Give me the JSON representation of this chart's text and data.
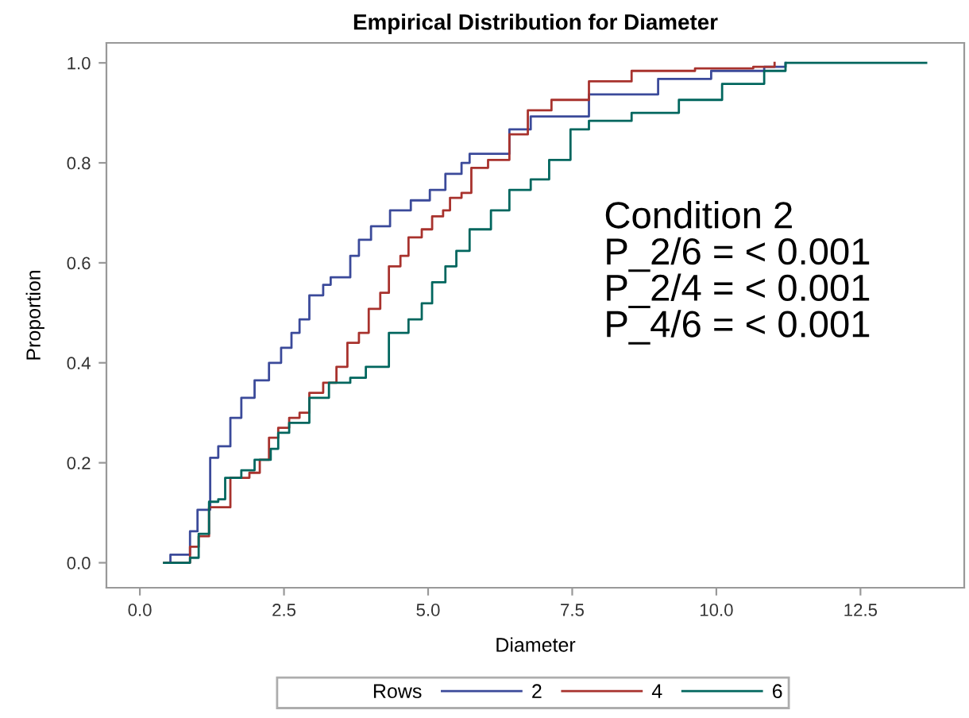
{
  "chart_data": {
    "type": "step",
    "title": "Empirical Distribution for Diameter",
    "xlabel": "Diameter",
    "ylabel": "Proportion",
    "legend_title": "Rows",
    "legend": "bottom",
    "grid": false,
    "xlim": [
      -0.58,
      14.3
    ],
    "ylim": [
      -0.05,
      1.04
    ],
    "xticks": [
      {
        "value": 0,
        "label": "0.0"
      },
      2.5,
      {
        "value": 5,
        "label": "5.0"
      },
      7.5,
      {
        "value": 10,
        "label": "10.0"
      },
      12.5
    ],
    "yticks": [
      {
        "value": 0,
        "label": "0.0"
      },
      0.2,
      0.4,
      0.6,
      0.8,
      {
        "value": 1,
        "label": "1.0"
      }
    ],
    "annotations": [
      "Condition 2\nP_2/6 = < 0.001\nP_2/4 = < 0.001\nP_4/6 = < 0.001"
    ],
    "series": [
      {
        "name": "2",
        "color": "#3b4a9a",
        "x": [
          0.47,
          0.53,
          0.87,
          1.0,
          1.22,
          1.36,
          1.57,
          1.76,
          1.99,
          2.24,
          2.45,
          2.63,
          2.77,
          2.94,
          3.18,
          3.31,
          3.65,
          3.8,
          4.01,
          4.34,
          4.7,
          5.03,
          5.3,
          5.58,
          5.72,
          6.41,
          6.78,
          7.79,
          8.99,
          9.91,
          10.83,
          11.2
        ],
        "values": [
          0,
          0.016,
          0.063,
          0.106,
          0.21,
          0.233,
          0.29,
          0.33,
          0.365,
          0.4,
          0.43,
          0.46,
          0.487,
          0.535,
          0.556,
          0.571,
          0.614,
          0.646,
          0.673,
          0.705,
          0.725,
          0.746,
          0.778,
          0.8,
          0.818,
          0.867,
          0.893,
          0.937,
          0.968,
          0.984,
          0.992,
          1.0
        ]
      },
      {
        "name": "4",
        "color": "#a8322d",
        "x": [
          0.42,
          0.87,
          1.02,
          1.2,
          1.57,
          1.9,
          2.08,
          2.24,
          2.4,
          2.59,
          2.77,
          2.94,
          3.18,
          3.41,
          3.6,
          3.8,
          3.97,
          4.17,
          4.32,
          4.52,
          4.66,
          4.89,
          5.07,
          5.26,
          5.38,
          5.58,
          5.75,
          6.04,
          6.41,
          6.73,
          7.14,
          7.79,
          8.53,
          9.63,
          10.64,
          11.01
        ],
        "values": [
          0,
          0.032,
          0.053,
          0.111,
          0.17,
          0.18,
          0.206,
          0.25,
          0.27,
          0.29,
          0.3,
          0.34,
          0.36,
          0.392,
          0.44,
          0.46,
          0.508,
          0.54,
          0.593,
          0.614,
          0.651,
          0.667,
          0.693,
          0.705,
          0.73,
          0.74,
          0.79,
          0.806,
          0.857,
          0.905,
          0.926,
          0.963,
          0.984,
          0.989,
          0.992,
          1.0
        ]
      },
      {
        "name": "6",
        "color": "#01665e",
        "x": [
          0.42,
          0.87,
          1.02,
          1.2,
          1.36,
          1.48,
          1.76,
          1.99,
          2.27,
          2.4,
          2.59,
          2.94,
          3.28,
          3.65,
          3.92,
          4.32,
          4.66,
          4.89,
          5.07,
          5.3,
          5.49,
          5.72,
          6.09,
          6.41,
          6.78,
          7.1,
          7.47,
          7.79,
          8.53,
          9.35,
          10.1,
          10.83,
          11.2,
          13.64
        ],
        "values": [
          0,
          0.01,
          0.058,
          0.122,
          0.127,
          0.17,
          0.185,
          0.206,
          0.228,
          0.26,
          0.28,
          0.33,
          0.36,
          0.37,
          0.392,
          0.46,
          0.487,
          0.519,
          0.561,
          0.593,
          0.624,
          0.667,
          0.705,
          0.746,
          0.767,
          0.806,
          0.867,
          0.884,
          0.9,
          0.926,
          0.958,
          0.984,
          1.0,
          1.0
        ]
      }
    ]
  }
}
